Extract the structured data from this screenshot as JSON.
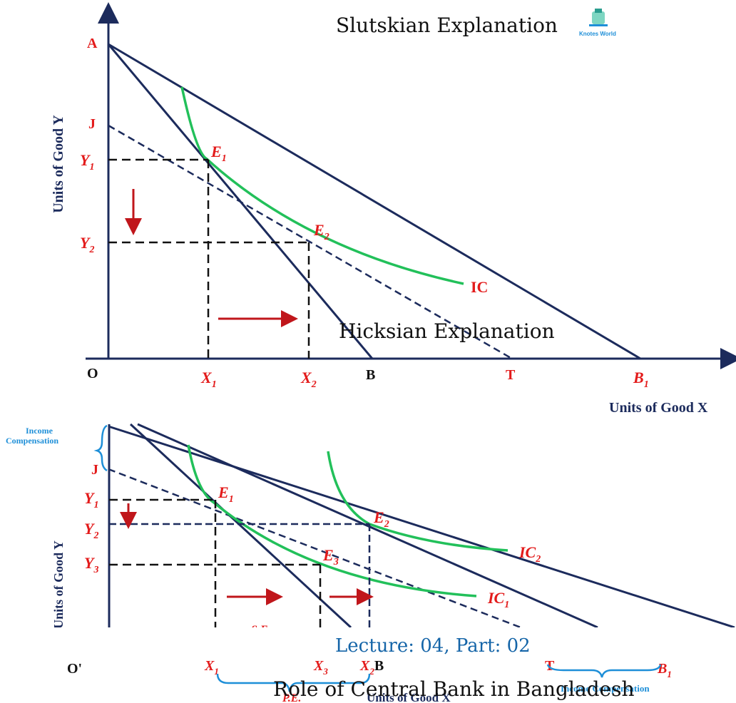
{
  "top_diagram": {
    "title": "Slutskian Explanation",
    "logo_text": "Knotes World",
    "y_axis_label": "Units of Good Y",
    "x_axis_label": "Units of Good X",
    "origin": "O",
    "points": {
      "A": "A",
      "J": "J",
      "Y1": "Y",
      "Y1_sub": "1",
      "Y2": "Y",
      "Y2_sub": "2",
      "X1": "X",
      "X1_sub": "1",
      "X2": "X",
      "X2_sub": "2",
      "B": "B",
      "T": "T",
      "B1": "B",
      "B1_sub": "1",
      "E1": "E",
      "E1_sub": "1",
      "E2": "E",
      "E2_sub": "2",
      "IC": "IC"
    },
    "overlay_text": "Hicksian Explanation"
  },
  "bottom_diagram": {
    "income_compensation_left": [
      "Income",
      "Compensation"
    ],
    "J": "J",
    "y_axis_label": "Units of Good Y",
    "origin": "O'",
    "Y1": "Y",
    "Y1_sub": "1",
    "Y2": "Y",
    "Y2_sub": "2",
    "Y3": "Y",
    "Y3_sub": "3",
    "E1": "E",
    "E1_sub": "1",
    "E2": "E",
    "E2_sub": "2",
    "E3": "E",
    "E3_sub": "3",
    "IC2": "IC",
    "IC2_sub": "2",
    "IC1": "IC",
    "IC1_sub": "1",
    "X1": "X",
    "X1_sub": "1",
    "X3": "X",
    "X3_sub": "3",
    "X2B": "X",
    "X2B_sub": "2",
    "X2B_tail": "B",
    "T": "T",
    "B1": "B",
    "B1_sub": "1",
    "income_compensation_right": "Income Compensation",
    "partial_label": "S.E.",
    "partial_x_label": "Units of Good X",
    "partial_bottom_left": "P.E."
  },
  "captions": {
    "lecture": "Lecture: 04, Part: 02",
    "topic": "Role of Central Bank in Bangladesh"
  },
  "colors": {
    "navy": "#1c2b5c",
    "red": "#e31b1b",
    "green": "#22c05a",
    "blue": "#1e8fd8"
  }
}
